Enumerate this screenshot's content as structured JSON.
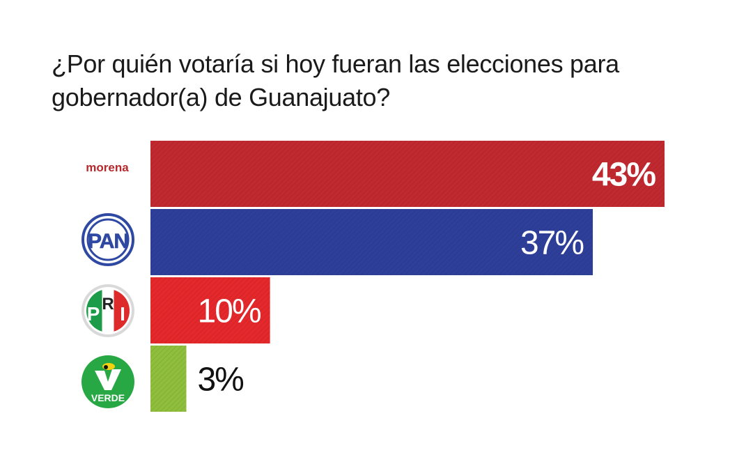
{
  "chart_data": {
    "type": "bar",
    "orientation": "horizontal",
    "title_lines": [
      "¿Por quién votaría si hoy fueran las elecciones para",
      "gobernador(a) de Guanajuato?"
    ],
    "categories": [
      "morena",
      "PAN",
      "PRI",
      "VERDE"
    ],
    "values": [
      43,
      37,
      10,
      3
    ],
    "value_labels": [
      "43%",
      "37%",
      "10%",
      "3%"
    ],
    "colors": [
      "#c0292f",
      "#2e3f9a",
      "#e4282b",
      "#8fbe3c"
    ],
    "xlim": [
      0,
      43
    ],
    "grid": false,
    "logos": {
      "morena": {
        "text": "morena",
        "color": "#b5292c"
      },
      "pan": {
        "text": "PAN",
        "color": "#2f49a3"
      },
      "pri": {
        "letters": [
          "P",
          "R",
          "I"
        ],
        "green": "#1c9b48",
        "red": "#dd2a2a"
      },
      "verde": {
        "text": "VERDE",
        "color": "#27a844"
      }
    }
  }
}
